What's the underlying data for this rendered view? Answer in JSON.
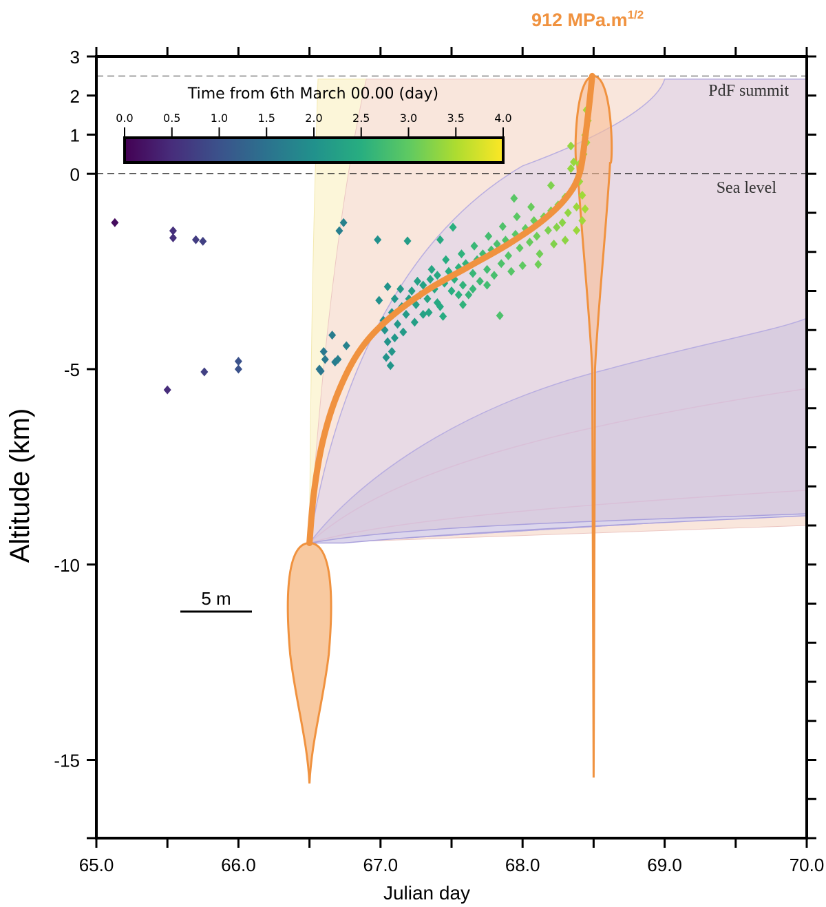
{
  "chart_data": {
    "type": "scatter",
    "title": "",
    "xlabel": "Julian day",
    "ylabel": "Altitude (km)",
    "xlim": [
      65.0,
      70.0
    ],
    "ylim": [
      -17.0,
      3.0
    ],
    "x_ticks": [
      65.0,
      65.5,
      66.0,
      66.5,
      67.0,
      67.5,
      68.0,
      68.5,
      69.0,
      69.5,
      70.0
    ],
    "x_tick_labels": [
      "65.0",
      "",
      "66.0",
      "",
      "67.0",
      "",
      "68.0",
      "",
      "69.0",
      "",
      "70.0"
    ],
    "y_ticks": [
      3,
      2,
      1,
      0,
      -5,
      -10,
      -15
    ],
    "y_tick_labels": [
      "3",
      "2",
      "1",
      "0",
      "-5",
      "-10",
      "-15"
    ],
    "y_minor_ticks": [
      -1,
      -2,
      -3,
      -4,
      -6,
      -7,
      -8,
      -9,
      -11,
      -12,
      -13,
      -14,
      -16,
      -17
    ],
    "grid": false,
    "reference_lines": [
      {
        "name": "PdF summit",
        "y": 2.5,
        "label": "PdF summit"
      },
      {
        "name": "Sea level",
        "y": 0,
        "label": "Sea level"
      }
    ],
    "annotation": {
      "text_main": "912  MPa.m",
      "text_sup": "1/2",
      "color": "#f0923f"
    },
    "scale_bar": {
      "label": "5 m"
    },
    "colorbar": {
      "title": "Time from 6th March 00.00 (day)",
      "min": 0.0,
      "max": 4.0,
      "tick_labels": [
        "0.0",
        "0.5",
        "1.0",
        "1.5",
        "2.0",
        "2.5",
        "3.0",
        "3.5",
        "4.0"
      ],
      "colormap": "viridis",
      "stops": [
        "#440154",
        "#472d7b",
        "#3b528b",
        "#2c728e",
        "#21918c",
        "#28ae80",
        "#5ec962",
        "#addc30",
        "#fde725"
      ]
    },
    "series": [
      {
        "name": "Seismicity (hypocenters)",
        "marker": "diamond",
        "color_by": "time_from_6_march_day",
        "points": [
          [
            65.13,
            -1.25,
            0.13
          ],
          [
            65.54,
            -1.46,
            0.54
          ],
          [
            65.54,
            -1.64,
            0.54
          ],
          [
            65.7,
            -1.69,
            0.7
          ],
          [
            65.75,
            -1.73,
            0.75
          ],
          [
            65.5,
            -5.53,
            0.5
          ],
          [
            65.76,
            -5.07,
            0.76
          ],
          [
            66.0,
            -4.8,
            1.0
          ],
          [
            66.0,
            -5.0,
            1.0
          ],
          [
            66.74,
            -1.25,
            1.74
          ],
          [
            66.71,
            -1.46,
            1.71
          ],
          [
            66.66,
            -4.13,
            1.66
          ],
          [
            66.6,
            -4.55,
            1.6
          ],
          [
            66.61,
            -4.75,
            1.61
          ],
          [
            66.68,
            -4.82,
            1.68
          ],
          [
            66.7,
            -4.75,
            1.7
          ],
          [
            66.58,
            -5.05,
            1.58
          ],
          [
            66.76,
            -4.4,
            1.76
          ],
          [
            66.57,
            -5.0,
            1.57
          ],
          [
            66.98,
            -1.69,
            1.98
          ],
          [
            67.19,
            -1.72,
            2.19
          ],
          [
            67.42,
            -1.69,
            2.42
          ],
          [
            67.51,
            -1.37,
            2.51
          ],
          [
            67.94,
            -0.63,
            2.94
          ],
          [
            67.05,
            -2.89,
            2.05
          ],
          [
            66.99,
            -3.24,
            1.99
          ],
          [
            67.07,
            -4.91,
            2.07
          ],
          [
            67.84,
            -3.63,
            2.84
          ],
          [
            68.11,
            -2.32,
            3.11
          ],
          [
            68.24,
            -1.37,
            3.24
          ],
          [
            68.34,
            0.13,
            3.34
          ],
          [
            68.34,
            0.71,
            3.34
          ],
          [
            68.45,
            1.63,
            3.45
          ],
          [
            68.46,
            1.36,
            3.46
          ],
          [
            68.44,
            0.99,
            3.44
          ],
          [
            67.03,
            -4.0,
            2.03
          ],
          [
            67.05,
            -4.3,
            2.05
          ],
          [
            67.08,
            -4.55,
            2.08
          ],
          [
            67.04,
            -4.7,
            2.04
          ],
          [
            67.1,
            -4.2,
            2.1
          ],
          [
            67.02,
            -3.75,
            2.02
          ],
          [
            67.08,
            -3.55,
            2.08
          ],
          [
            67.12,
            -3.85,
            2.12
          ],
          [
            67.15,
            -3.4,
            2.15
          ],
          [
            67.18,
            -3.6,
            2.18
          ],
          [
            67.1,
            -3.2,
            2.1
          ],
          [
            67.2,
            -3.2,
            2.2
          ],
          [
            67.22,
            -3.0,
            2.22
          ],
          [
            67.25,
            -3.35,
            2.25
          ],
          [
            67.28,
            -3.1,
            2.28
          ],
          [
            67.3,
            -2.85,
            2.3
          ],
          [
            67.33,
            -3.2,
            2.33
          ],
          [
            67.35,
            -2.7,
            2.35
          ],
          [
            67.38,
            -2.95,
            2.38
          ],
          [
            67.4,
            -2.6,
            2.4
          ],
          [
            67.42,
            -3.4,
            2.42
          ],
          [
            67.45,
            -2.8,
            2.45
          ],
          [
            67.48,
            -2.5,
            2.48
          ],
          [
            67.5,
            -3.0,
            2.5
          ],
          [
            67.52,
            -2.7,
            2.52
          ],
          [
            67.55,
            -2.4,
            2.55
          ],
          [
            67.58,
            -2.85,
            2.58
          ],
          [
            67.6,
            -2.3,
            2.6
          ],
          [
            67.62,
            -3.1,
            2.62
          ],
          [
            67.65,
            -2.55,
            2.65
          ],
          [
            67.68,
            -2.2,
            2.68
          ],
          [
            67.7,
            -2.75,
            2.7
          ],
          [
            67.72,
            -2.05,
            2.72
          ],
          [
            67.75,
            -2.45,
            2.75
          ],
          [
            67.78,
            -1.95,
            2.78
          ],
          [
            67.8,
            -2.6,
            2.8
          ],
          [
            67.82,
            -1.8,
            2.82
          ],
          [
            67.85,
            -2.3,
            2.85
          ],
          [
            67.88,
            -1.7,
            2.88
          ],
          [
            67.9,
            -2.1,
            2.9
          ],
          [
            67.92,
            -2.5,
            2.92
          ],
          [
            67.95,
            -1.55,
            2.95
          ],
          [
            67.98,
            -1.9,
            2.98
          ],
          [
            68.0,
            -2.35,
            3.0
          ],
          [
            68.02,
            -1.4,
            3.02
          ],
          [
            68.05,
            -1.75,
            3.05
          ],
          [
            68.08,
            -1.2,
            3.08
          ],
          [
            68.1,
            -1.6,
            3.1
          ],
          [
            68.12,
            -2.05,
            3.12
          ],
          [
            68.15,
            -1.1,
            3.15
          ],
          [
            68.18,
            -1.45,
            3.18
          ],
          [
            68.2,
            -0.95,
            3.2
          ],
          [
            68.22,
            -1.8,
            3.22
          ],
          [
            68.25,
            -0.8,
            3.25
          ],
          [
            68.28,
            -1.25,
            3.28
          ],
          [
            68.3,
            -0.6,
            3.3
          ],
          [
            68.32,
            -1.0,
            3.32
          ],
          [
            68.35,
            -0.4,
            3.35
          ],
          [
            68.38,
            -0.85,
            3.38
          ],
          [
            68.4,
            -0.2,
            3.4
          ],
          [
            68.42,
            -0.55,
            3.42
          ],
          [
            68.4,
            0.25,
            3.4
          ],
          [
            68.43,
            0.5,
            3.43
          ],
          [
            68.42,
            -1.2,
            3.42
          ],
          [
            68.38,
            -1.45,
            3.38
          ],
          [
            68.45,
            0.8,
            3.45
          ],
          [
            68.44,
            -0.9,
            3.44
          ],
          [
            68.36,
            0.3,
            3.36
          ],
          [
            68.3,
            -1.7,
            3.3
          ],
          [
            68.2,
            -0.3,
            3.2
          ],
          [
            67.3,
            -3.6,
            2.3
          ],
          [
            67.4,
            -3.3,
            2.4
          ],
          [
            67.55,
            -3.1,
            2.55
          ],
          [
            67.65,
            -2.95,
            2.65
          ],
          [
            67.75,
            -2.85,
            2.75
          ],
          [
            67.14,
            -2.95,
            2.14
          ],
          [
            67.26,
            -2.75,
            2.26
          ],
          [
            67.36,
            -2.45,
            2.36
          ],
          [
            67.46,
            -2.2,
            2.46
          ],
          [
            67.57,
            -2.05,
            2.57
          ],
          [
            67.66,
            -1.85,
            2.66
          ],
          [
            67.76,
            -1.6,
            2.76
          ],
          [
            67.86,
            -1.35,
            2.86
          ],
          [
            67.96,
            -1.1,
            2.96
          ],
          [
            68.06,
            -0.85,
            3.06
          ],
          [
            67.16,
            -4.05,
            2.16
          ],
          [
            67.24,
            -3.8,
            2.24
          ],
          [
            67.34,
            -3.55,
            2.34
          ],
          [
            67.44,
            -3.65,
            2.44
          ],
          [
            67.58,
            -3.35,
            2.58
          ]
        ]
      }
    ],
    "model_curves": [
      {
        "name": "Dike tip trajectory (model)",
        "color": "#f0923f",
        "points": [
          [
            66.5,
            -9.45
          ],
          [
            66.53,
            -8.2
          ],
          [
            66.59,
            -6.9
          ],
          [
            66.69,
            -5.7
          ],
          [
            66.84,
            -4.6
          ],
          [
            67.03,
            -3.8
          ],
          [
            67.32,
            -3.0
          ],
          [
            67.61,
            -2.4
          ],
          [
            67.9,
            -1.8
          ],
          [
            68.14,
            -1.2
          ],
          [
            68.31,
            -0.6
          ],
          [
            68.4,
            0.0
          ],
          [
            68.44,
            0.9
          ],
          [
            68.47,
            1.8
          ],
          [
            68.49,
            2.5
          ]
        ]
      }
    ],
    "envelopes": [
      {
        "name": "envelope-yellow",
        "color": "#fcf6d9",
        "x_start": 66.5,
        "upper_reach_day": 66.55
      },
      {
        "name": "envelope-peach",
        "color": "#f9e6dc",
        "x_start": 66.5,
        "upper_reach_day": 66.9
      },
      {
        "name": "envelope-mauve",
        "color": "#e8dae5",
        "x_start": 66.5,
        "upper_reach_day": 69.0
      },
      {
        "name": "envelope-lavender",
        "color": "#d8cce0",
        "x_start": 66.5,
        "upper_right_altitude": -3.7
      },
      {
        "name": "envelope-light-lavender",
        "color": "#dcd6ec",
        "x_start": 66.5,
        "upper_right_altitude": -8.7
      }
    ]
  }
}
